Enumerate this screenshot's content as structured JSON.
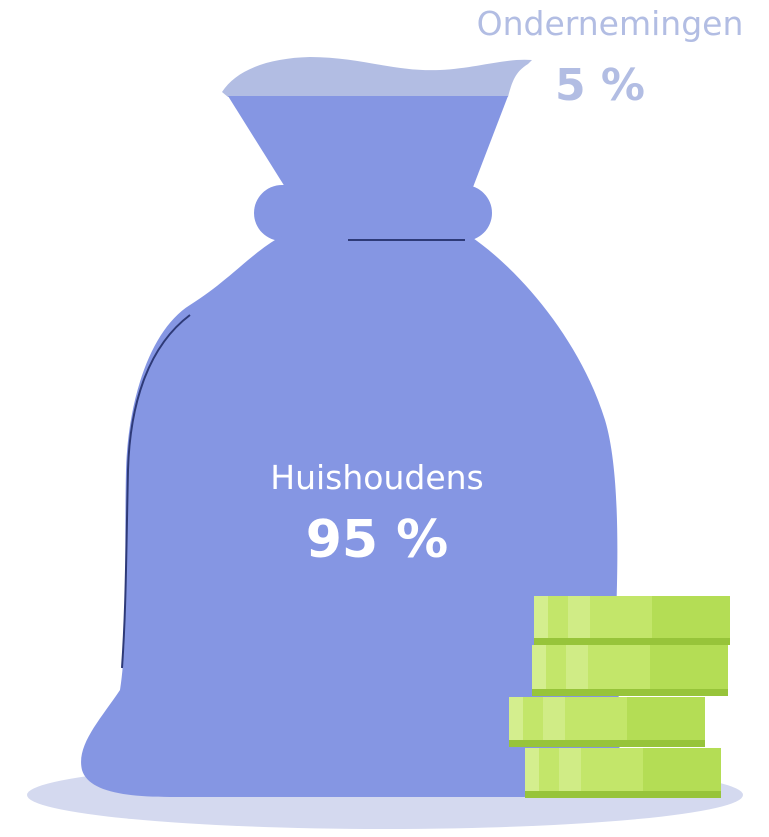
{
  "shares": [
    {
      "name": "Ondernemingen",
      "value_label": "5 %",
      "percent": 5
    },
    {
      "name": "Huishoudens",
      "value_label": "95 %",
      "percent": 95
    }
  ],
  "colors": {
    "bag": "#8596e3",
    "bag_top": "#b2bde3",
    "shadow": "#d4d9ef",
    "coin_light": "#c3e66a",
    "coin_mid": "#b4dd55",
    "coin_dark": "#97c43a",
    "label_small": "#b2bde3",
    "label_big": "#ffffff"
  },
  "icons": [
    "money-bag-icon",
    "coin-stack-icon"
  ]
}
